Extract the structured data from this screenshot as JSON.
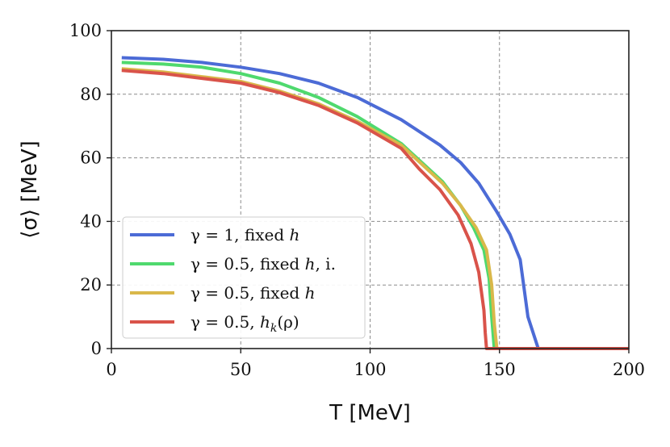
{
  "chart_data": {
    "type": "line",
    "title": "",
    "xlabel": "T [MeV]",
    "ylabel": "⟨σ⟩ [MeV]",
    "xlim": [
      0,
      200
    ],
    "ylim": [
      0,
      100
    ],
    "xticks": [
      0,
      50,
      100,
      150,
      200
    ],
    "yticks": [
      0,
      20,
      40,
      60,
      80,
      100
    ],
    "grid": true,
    "legend_position": "lower-left",
    "series": [
      {
        "name": "γ = 1, fixed h",
        "color": "#4c6bd6",
        "x": [
          4,
          20,
          35,
          50,
          65,
          80,
          95,
          112,
          127,
          135,
          142,
          149,
          154,
          158,
          161,
          165,
          200
        ],
        "y": [
          91.5,
          91,
          90,
          88.5,
          86.5,
          83.5,
          79,
          72,
          64,
          58.5,
          52,
          43,
          36,
          28,
          10,
          0,
          0
        ]
      },
      {
        "name": "γ = 0.5, fixed h, i.",
        "color": "#4fd96e",
        "x": [
          4,
          20,
          35,
          50,
          65,
          80,
          95,
          112,
          120,
          128,
          135,
          140,
          144,
          146,
          147,
          148,
          200
        ],
        "y": [
          90,
          89.5,
          88.5,
          86.5,
          83.5,
          79,
          73,
          64.5,
          58.5,
          52.5,
          45,
          38,
          31,
          22,
          10,
          0,
          0
        ]
      },
      {
        "name": "γ = 0.5, fixed h",
        "color": "#d9b84a",
        "x": [
          4,
          20,
          35,
          50,
          65,
          80,
          95,
          112,
          120,
          128,
          135,
          141,
          145,
          147,
          148,
          149,
          200
        ],
        "y": [
          88,
          87,
          85.5,
          84,
          81,
          77,
          71.5,
          64,
          58,
          52,
          45,
          38,
          31,
          20,
          8,
          0,
          0
        ]
      },
      {
        "name": "γ = 0.5, h_k(ρ)",
        "color": "#d9534a",
        "x": [
          4,
          20,
          35,
          50,
          65,
          80,
          95,
          112,
          119,
          127,
          134,
          139,
          142,
          144,
          144.5,
          145,
          200
        ],
        "y": [
          87.5,
          86.5,
          85,
          83.5,
          80.5,
          76.5,
          71,
          63,
          56.5,
          50,
          42,
          33,
          24,
          12,
          5,
          0,
          0
        ]
      }
    ]
  },
  "legend": {
    "entries": [
      {
        "prefix": "γ = 1, fixed ",
        "var": "h",
        "suffix": ""
      },
      {
        "prefix": "γ = 0.5, fixed ",
        "var": "h",
        "suffix": ", i."
      },
      {
        "prefix": "γ = 0.5, fixed ",
        "var": "h",
        "suffix": ""
      },
      {
        "prefix": "γ = 0.5, ",
        "var": "h",
        "sub": "k",
        "suffix": "(ρ)"
      }
    ]
  }
}
